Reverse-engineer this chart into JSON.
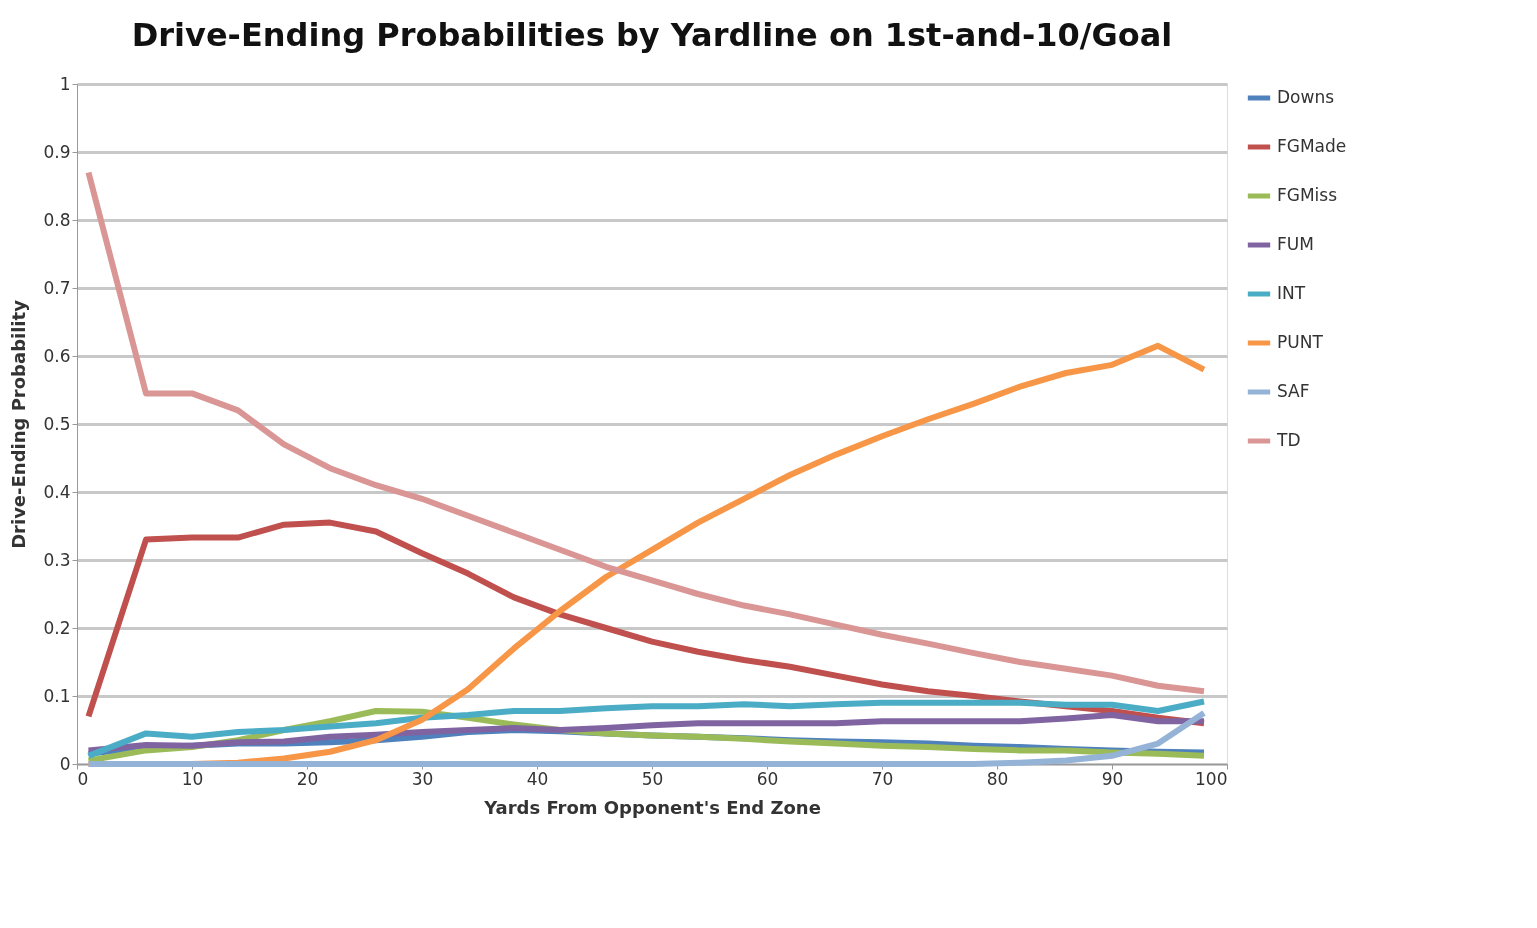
{
  "chart_data": {
    "type": "line",
    "title": "Drive-Ending Probabilities by Yardline on 1st-and-10/Goal",
    "xlabel": "Yards From Opponent's End Zone",
    "ylabel": "Drive-Ending Probability",
    "x": [
      1,
      6,
      10,
      14,
      18,
      22,
      26,
      30,
      34,
      38,
      42,
      46,
      50,
      54,
      58,
      62,
      66,
      70,
      74,
      78,
      82,
      86,
      90,
      94,
      98
    ],
    "series": [
      {
        "name": "Downs",
        "color": "#4f81bd",
        "values": [
          0.015,
          0.025,
          0.027,
          0.03,
          0.03,
          0.032,
          0.035,
          0.04,
          0.047,
          0.05,
          0.048,
          0.045,
          0.042,
          0.04,
          0.038,
          0.035,
          0.033,
          0.032,
          0.03,
          0.027,
          0.025,
          0.022,
          0.02,
          0.018,
          0.017
        ]
      },
      {
        "name": "FGMade",
        "color": "#c0504d",
        "values": [
          0.07,
          0.33,
          0.333,
          0.333,
          0.352,
          0.355,
          0.342,
          0.31,
          0.28,
          0.245,
          0.22,
          0.2,
          0.18,
          0.165,
          0.153,
          0.143,
          0.13,
          0.117,
          0.107,
          0.1,
          0.092,
          0.085,
          0.078,
          0.068,
          0.06
        ]
      },
      {
        "name": "FGMiss",
        "color": "#9bbb59",
        "values": [
          0.005,
          0.02,
          0.025,
          0.035,
          0.05,
          0.063,
          0.078,
          0.077,
          0.068,
          0.058,
          0.05,
          0.045,
          0.042,
          0.04,
          0.037,
          0.033,
          0.03,
          0.027,
          0.025,
          0.022,
          0.02,
          0.02,
          0.017,
          0.015,
          0.012
        ]
      },
      {
        "name": "FUM",
        "color": "#8064a2",
        "values": [
          0.02,
          0.028,
          0.027,
          0.032,
          0.033,
          0.04,
          0.043,
          0.047,
          0.05,
          0.053,
          0.05,
          0.053,
          0.057,
          0.06,
          0.06,
          0.06,
          0.06,
          0.063,
          0.063,
          0.063,
          0.063,
          0.067,
          0.072,
          0.063,
          0.063
        ]
      },
      {
        "name": "INT",
        "color": "#4bacc6",
        "values": [
          0.012,
          0.045,
          0.04,
          0.047,
          0.05,
          0.055,
          0.06,
          0.068,
          0.072,
          0.078,
          0.078,
          0.082,
          0.085,
          0.085,
          0.088,
          0.085,
          0.088,
          0.09,
          0.09,
          0.09,
          0.09,
          0.087,
          0.087,
          0.078,
          0.092
        ]
      },
      {
        "name": "PUNT",
        "color": "#f79646",
        "values": [
          0,
          0,
          0,
          0.002,
          0.008,
          0.018,
          0.035,
          0.065,
          0.11,
          0.17,
          0.225,
          0.275,
          0.315,
          0.355,
          0.39,
          0.425,
          0.455,
          0.482,
          0.507,
          0.53,
          0.555,
          0.575,
          0.587,
          0.615,
          0.58
        ]
      },
      {
        "name": "SAF",
        "color": "#95b3d7",
        "values": [
          0,
          0,
          0,
          0,
          0,
          0,
          0,
          0,
          0,
          0,
          0,
          0,
          0,
          0,
          0,
          0,
          0,
          0,
          0,
          0,
          0.002,
          0.005,
          0.012,
          0.03,
          0.075
        ]
      },
      {
        "name": "TD",
        "color": "#d99694",
        "values": [
          0.87,
          0.545,
          0.545,
          0.52,
          0.47,
          0.435,
          0.41,
          0.39,
          0.365,
          0.34,
          0.315,
          0.29,
          0.27,
          0.25,
          0.233,
          0.22,
          0.205,
          0.19,
          0.177,
          0.163,
          0.15,
          0.14,
          0.13,
          0.115,
          0.107
        ]
      }
    ],
    "xlim": [
      0,
      100
    ],
    "xticks": [
      0,
      10,
      20,
      30,
      40,
      50,
      60,
      70,
      80,
      90,
      100
    ],
    "ylim": [
      0,
      1
    ],
    "yticks": [
      0,
      0.1,
      0.2,
      0.3,
      0.4,
      0.5,
      0.6,
      0.7,
      0.8,
      0.9,
      1
    ],
    "grid": "y",
    "legend": "right",
    "marker": "none",
    "line_style": "solid"
  }
}
